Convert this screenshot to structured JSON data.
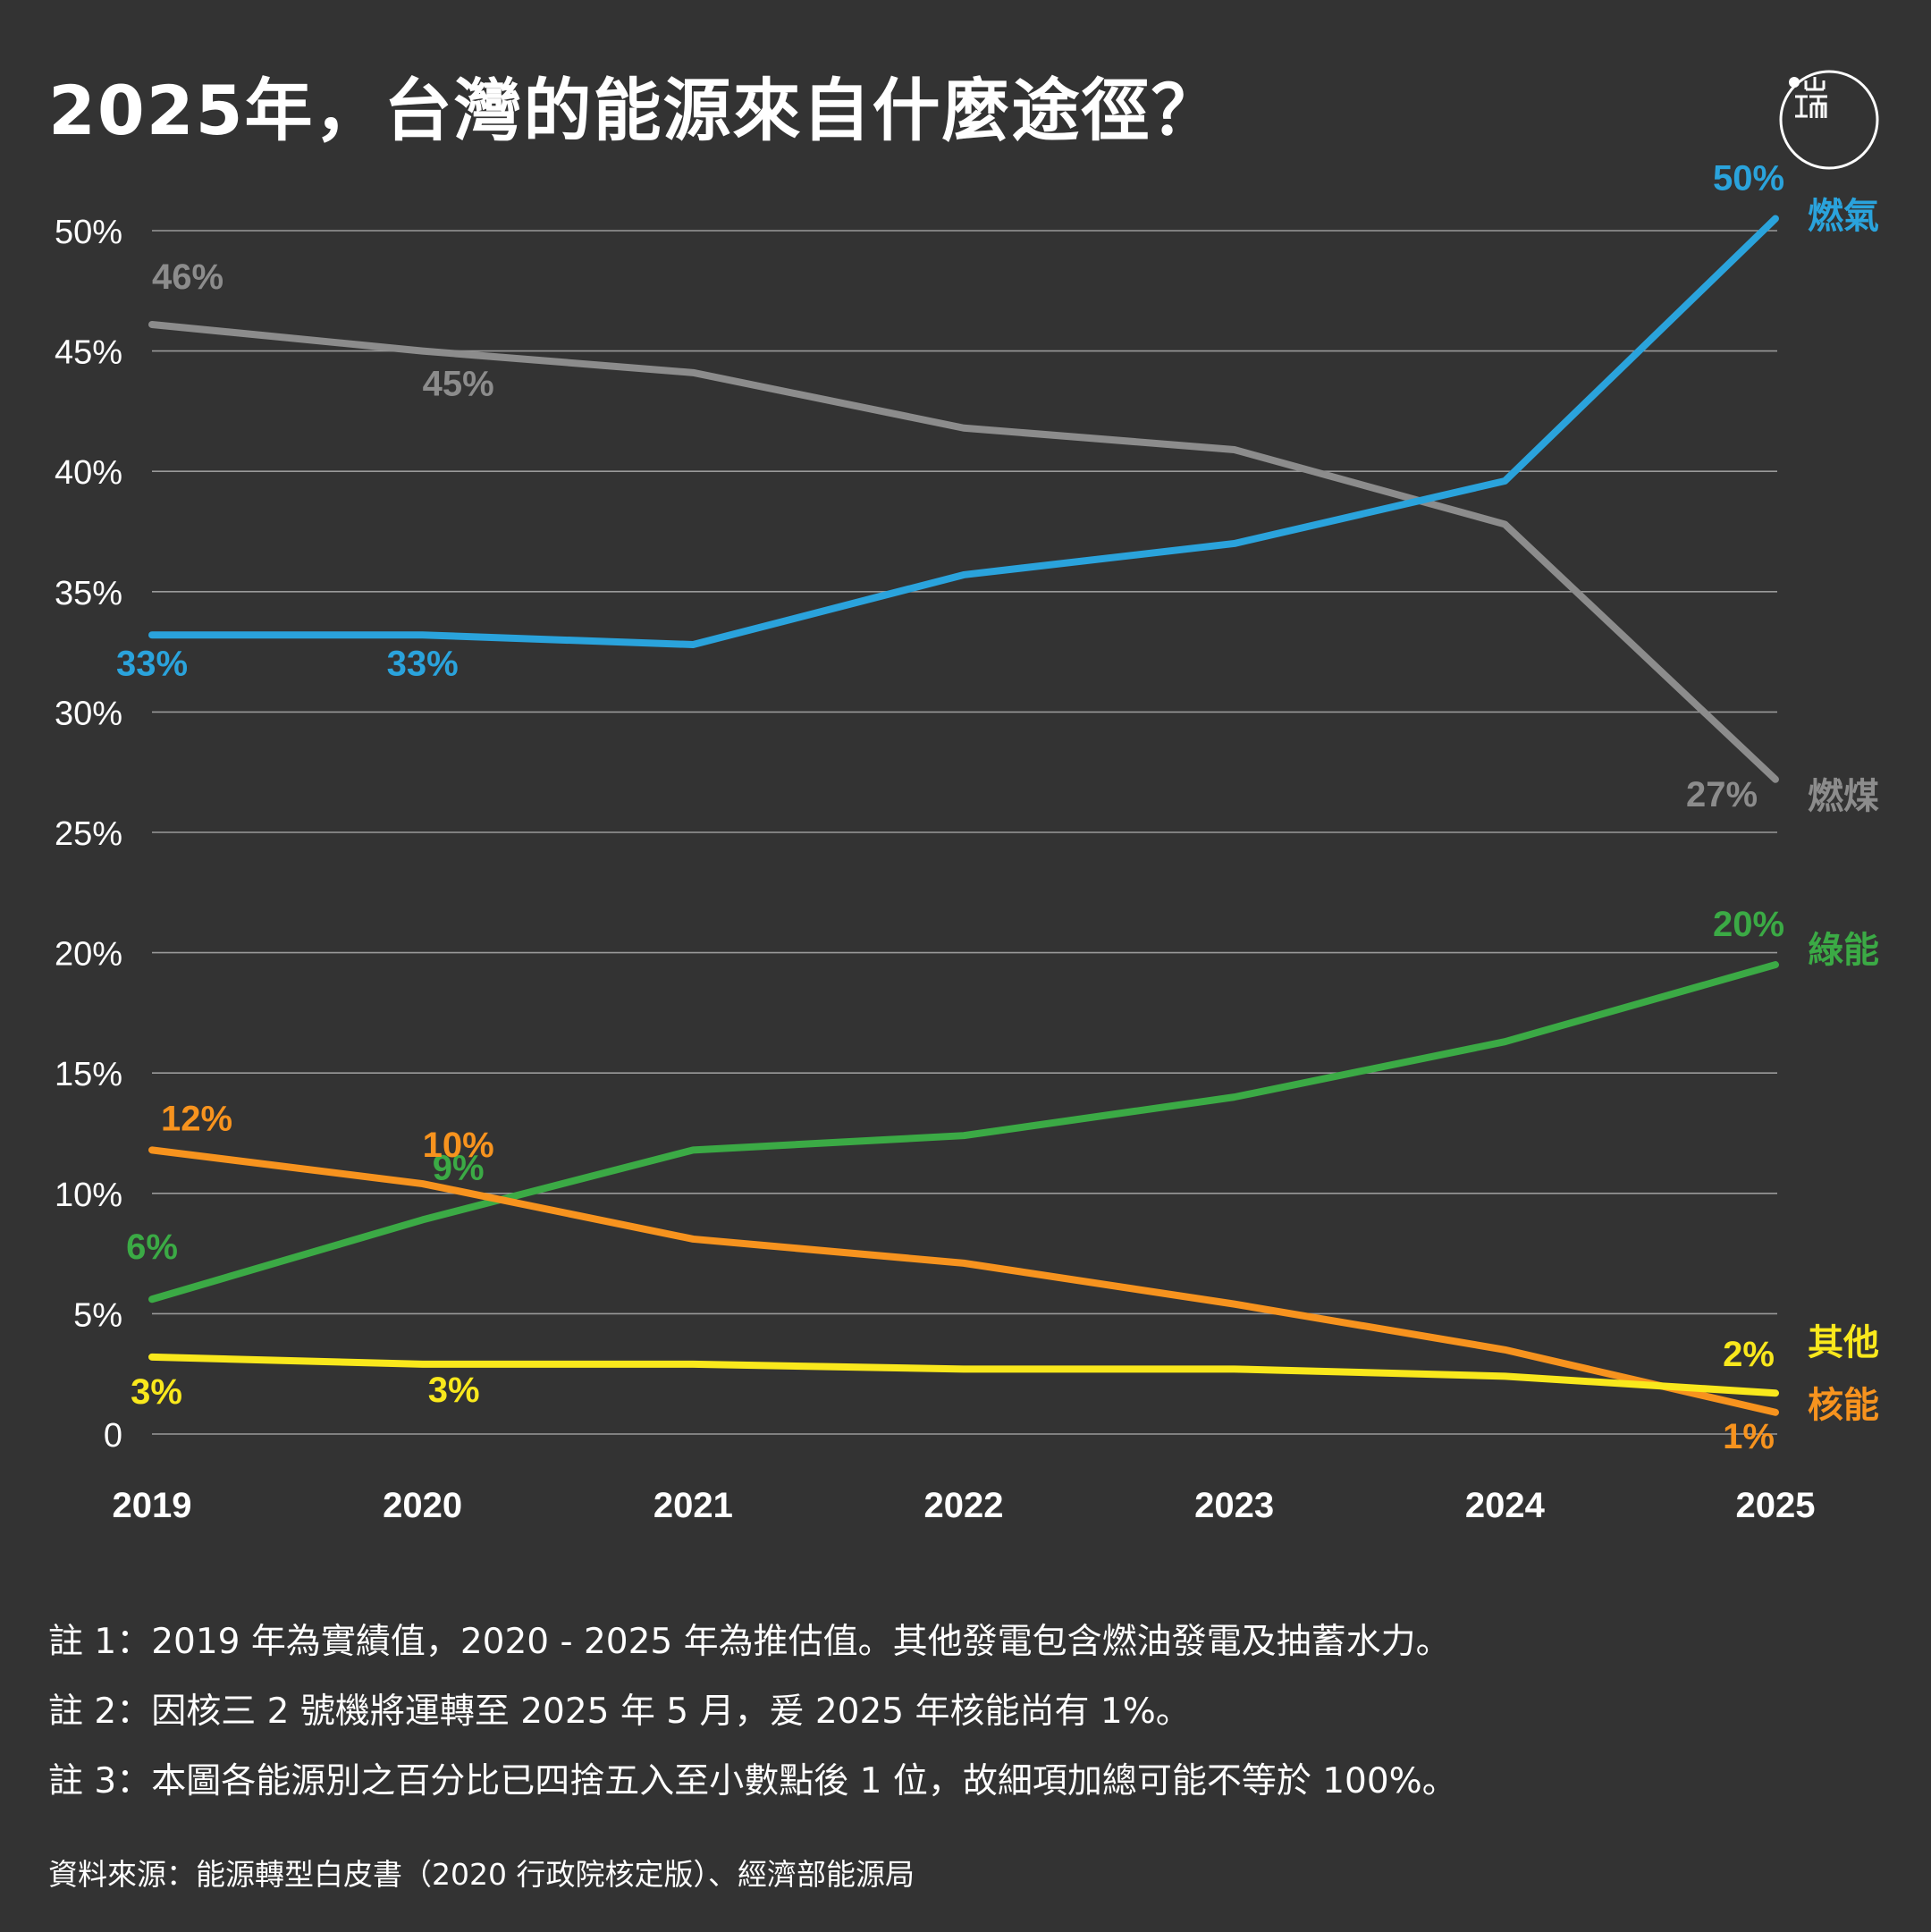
{
  "title": "2025年，台灣的能源來自什麼途徑？",
  "chart_data": {
    "type": "line",
    "x": [
      "2019",
      "2020",
      "2021",
      "2022",
      "2023",
      "2024",
      "2025"
    ],
    "ylim": [
      0,
      50
    ],
    "yticks": [
      "0",
      "5%",
      "10%",
      "15%",
      "20%",
      "25%",
      "30%",
      "35%",
      "40%",
      "45%",
      "50%"
    ],
    "grid": true,
    "series": [
      {
        "name": "燃氣",
        "color": "#2AA3DC",
        "values": [
          33.2,
          33.2,
          32.8,
          35.7,
          37.0,
          39.6,
          50.5
        ],
        "labels": [
          {
            "i": 0,
            "text": "33%"
          },
          {
            "i": 1,
            "text": "33%"
          },
          {
            "i": 6,
            "text": "50%"
          }
        ]
      },
      {
        "name": "燃煤",
        "color": "#8C8C8C",
        "values": [
          46.1,
          45.0,
          44.1,
          41.8,
          40.9,
          37.8,
          27.2
        ],
        "labels": [
          {
            "i": 0,
            "text": "46%"
          },
          {
            "i": 1,
            "text": "45%"
          },
          {
            "i": 6,
            "text": "27%"
          }
        ]
      },
      {
        "name": "綠能",
        "color": "#3BAA45",
        "values": [
          5.6,
          8.9,
          11.8,
          12.4,
          14.0,
          16.3,
          19.5
        ],
        "labels": [
          {
            "i": 0,
            "text": "6%"
          },
          {
            "i": 1,
            "text": "9%"
          },
          {
            "i": 6,
            "text": "20%"
          }
        ]
      },
      {
        "name": "核能",
        "color": "#F7931E",
        "values": [
          11.8,
          10.4,
          8.1,
          7.1,
          5.4,
          3.5,
          0.9
        ],
        "labels": [
          {
            "i": 0,
            "text": "12%"
          },
          {
            "i": 1,
            "text": "10%"
          },
          {
            "i": 6,
            "text": "1%"
          }
        ]
      },
      {
        "name": "其他",
        "color": "#F9E81C",
        "values": [
          3.2,
          2.9,
          2.9,
          2.7,
          2.7,
          2.4,
          1.7
        ],
        "labels": [
          {
            "i": 0,
            "text": "3%"
          },
          {
            "i": 1,
            "text": "3%"
          },
          {
            "i": 6,
            "text": "2%"
          }
        ]
      }
    ]
  },
  "notes": [
    "註 1：2019 年為實績值，2020 - 2025 年為推估值。其他發電包含燃油發電及抽蓄水力。",
    "註 2：因核三 2 號機將運轉至 2025 年 5 月，爰 2025 年核能尚有 1%。",
    "註 3：本圖各能源別之百分比已四捨五入至小數點後 1 位，故細項加總可能不等於 100%。"
  ],
  "source": "資料來源：能源轉型白皮書（2020 行政院核定版）、經濟部能源局",
  "logo": {
    "text": "端",
    "icon": "initium-logo-icon"
  }
}
